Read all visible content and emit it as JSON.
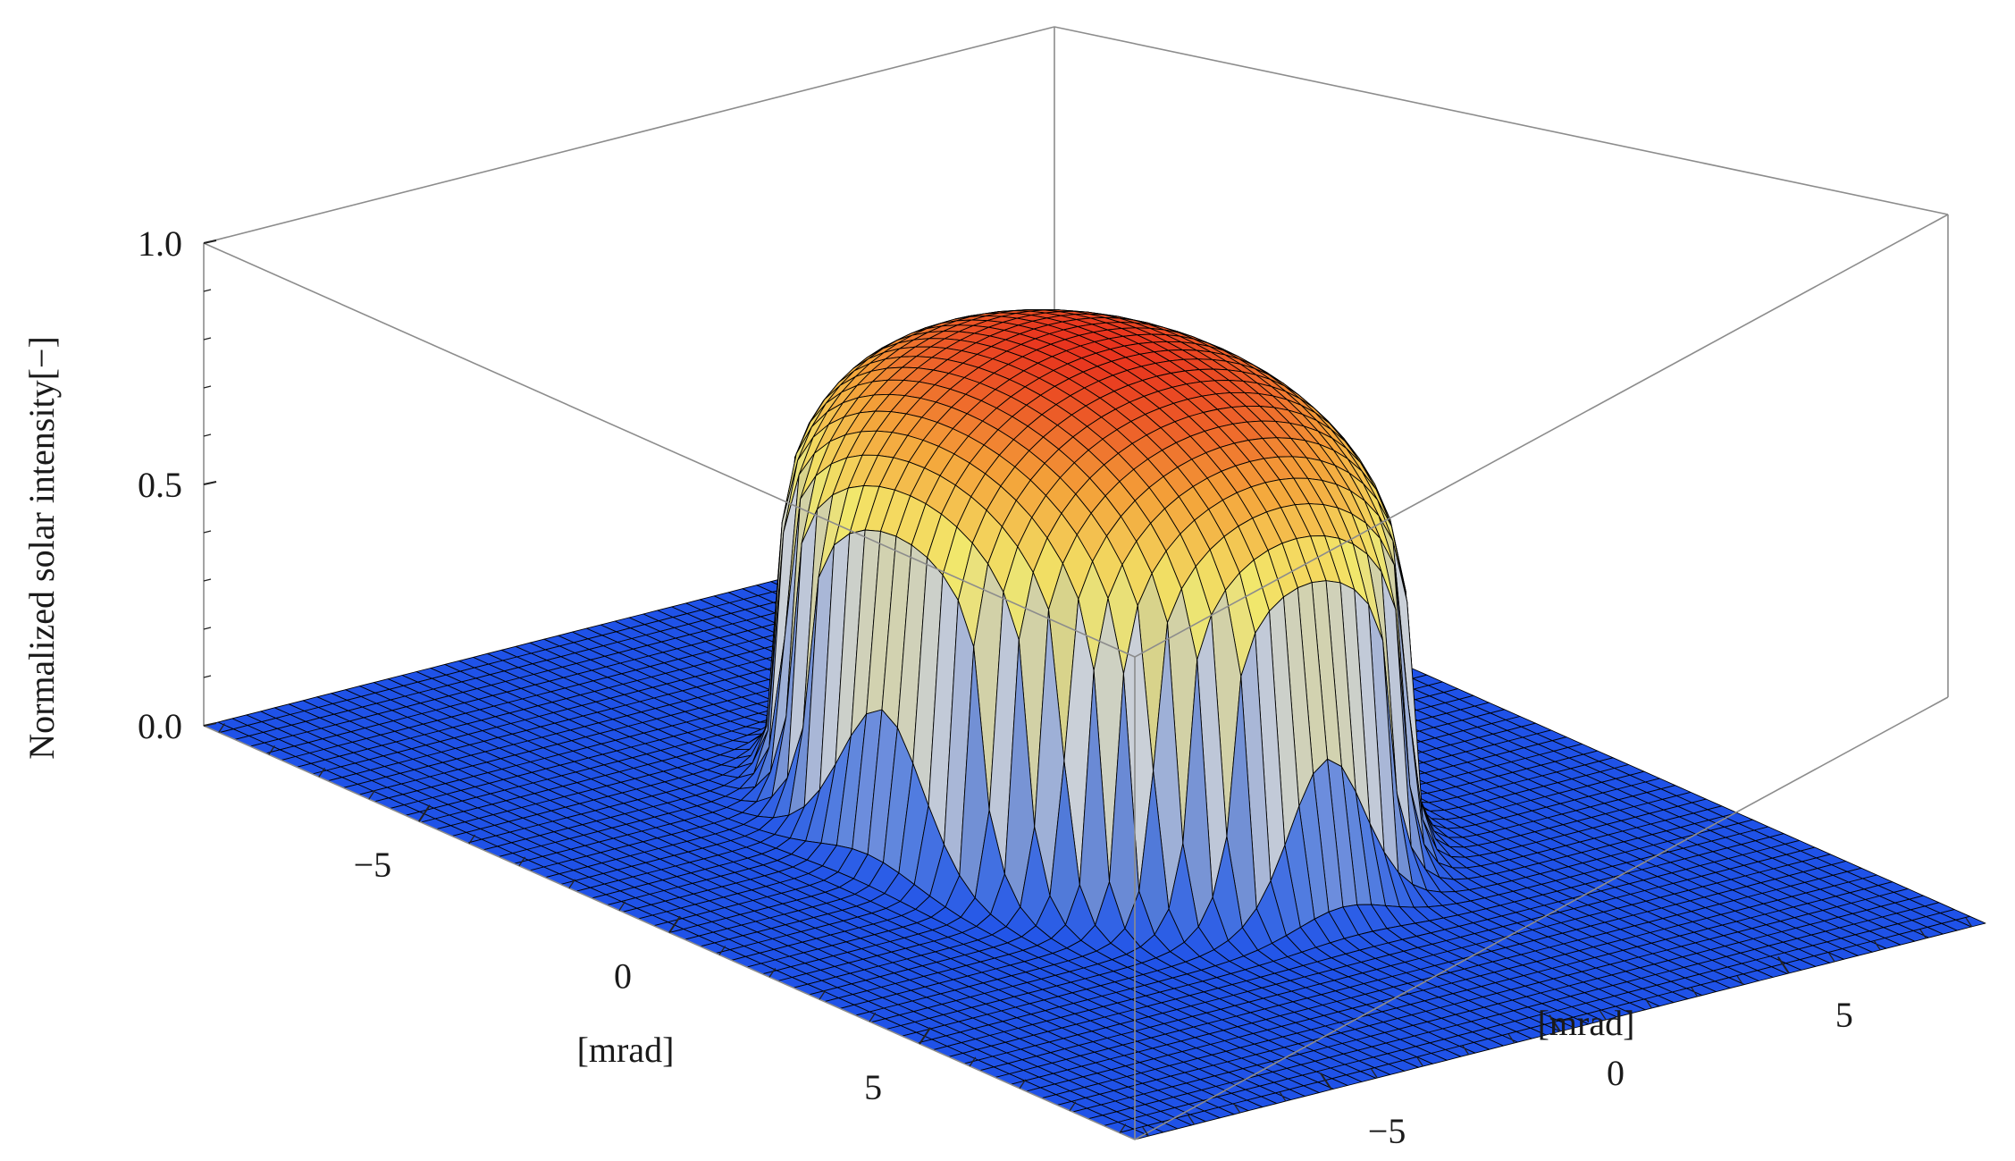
{
  "chart_data": {
    "type": "surface3d",
    "title": "",
    "zlabel": "Normalized solar intensity[−]",
    "xlabel": "[mrad]",
    "ylabel": "[mrad]",
    "xlim": [
      -9.3,
      9.3
    ],
    "ylim": [
      -9.3,
      9.3
    ],
    "zlim": [
      0,
      1
    ],
    "z_ticks": [
      "0.0",
      "0.5",
      "1.0"
    ],
    "z_tick_values": [
      0,
      0.5,
      1
    ],
    "x_ticks": [
      "−5",
      "0",
      "5"
    ],
    "x_tick_values": [
      -5,
      0,
      5
    ],
    "y_ticks": [
      "−5",
      "0",
      "5"
    ],
    "y_tick_values": [
      -5,
      0,
      5
    ],
    "grid_n": 60,
    "surface": {
      "description_function": "solar disk with limb darkening",
      "disk_radius_mrad": 4.65,
      "limb_edge_intensity": 0.35,
      "peak_intensity": 1.0
    },
    "colors": {
      "floor": "#1f52e8",
      "low": "#4f7ff0",
      "mid_low": "#e6ecf6",
      "mid_high": "#fbf06e",
      "high": "#f7a43a",
      "peak": "#e8321d",
      "mesh": "#000000",
      "box": "#8c8c8c"
    }
  }
}
